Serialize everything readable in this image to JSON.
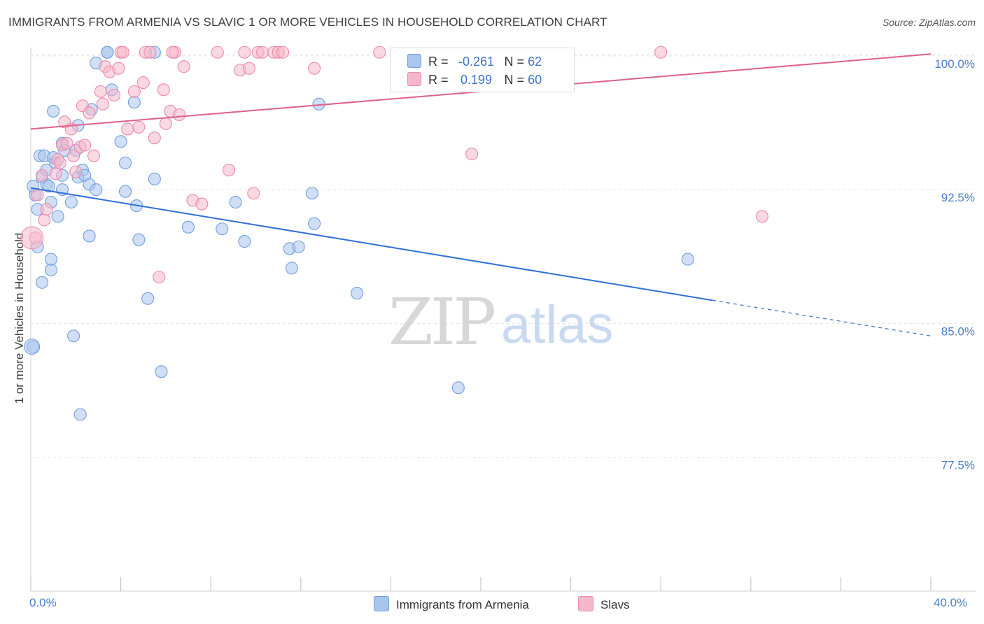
{
  "title": "IMMIGRANTS FROM ARMENIA VS SLAVIC 1 OR MORE VEHICLES IN HOUSEHOLD CORRELATION CHART",
  "source": "Source: ZipAtlas.com",
  "watermark": {
    "zip": "ZIP",
    "atlas": "atlas"
  },
  "legend": {
    "r_label": "R =",
    "n_label": "N =",
    "rows": [
      {
        "r": "-0.261",
        "n": "62",
        "color": "#a9c5ec"
      },
      {
        "r": "0.199",
        "n": "60",
        "color": "#f5b8cb"
      }
    ]
  },
  "bottom_legend": [
    {
      "label": "Immigrants from Armenia",
      "color": "#a9c5ec"
    },
    {
      "label": "Slavs",
      "color": "#f5b8cb"
    }
  ],
  "chart_data": {
    "type": "scatter",
    "ylabel": "1 or more Vehicles in Household",
    "xlim": [
      0,
      40
    ],
    "ylim": [
      70,
      100.7
    ],
    "x_tick_labels": [
      {
        "value": 0,
        "label": "0.0%"
      },
      {
        "value": 40,
        "label": "40.0%"
      }
    ],
    "y_tick_labels": [
      {
        "value": 100,
        "label": "100.0%"
      },
      {
        "value": 92.5,
        "label": "92.5%"
      },
      {
        "value": 85,
        "label": "85.0%"
      },
      {
        "value": 77.5,
        "label": "77.5%"
      }
    ],
    "x_minor_ticks": [
      0,
      4,
      8,
      12,
      16,
      20,
      24,
      28,
      32,
      36,
      40
    ],
    "grid": true,
    "series": [
      {
        "name": "Immigrants from Armenia",
        "color": "#6f9fe0",
        "fill": "#a9c5ec",
        "trend": {
          "x0": 0,
          "y0": 92.6,
          "x1": 30.3,
          "y1": 86.3,
          "dash_x1": 40,
          "dash_y1": 84.3
        },
        "points": [
          [
            0.1,
            83.7
          ],
          [
            0.2,
            92.2
          ],
          [
            0.3,
            89.3
          ],
          [
            0.3,
            91.4
          ],
          [
            0.4,
            94.4
          ],
          [
            0.5,
            93.2
          ],
          [
            0.5,
            87.3
          ],
          [
            0.6,
            94.4
          ],
          [
            0.7,
            92.8
          ],
          [
            0.7,
            93.6
          ],
          [
            0.8,
            92.7
          ],
          [
            0.9,
            88.0
          ],
          [
            0.9,
            88.6
          ],
          [
            0.9,
            91.8
          ],
          [
            1.0,
            96.9
          ],
          [
            1.0,
            94.3
          ],
          [
            1.1,
            94.0
          ],
          [
            1.2,
            91.0
          ],
          [
            1.4,
            95.1
          ],
          [
            1.4,
            93.3
          ],
          [
            1.4,
            92.5
          ],
          [
            1.5,
            94.7
          ],
          [
            1.8,
            91.8
          ],
          [
            1.9,
            84.3
          ],
          [
            2.0,
            94.7
          ],
          [
            2.1,
            93.2
          ],
          [
            2.1,
            96.1
          ],
          [
            2.2,
            79.9
          ],
          [
            2.3,
            93.6
          ],
          [
            2.4,
            93.3
          ],
          [
            2.6,
            89.9
          ],
          [
            2.6,
            92.8
          ],
          [
            2.7,
            97.0
          ],
          [
            2.9,
            92.5
          ],
          [
            2.9,
            99.6
          ],
          [
            3.4,
            100.2
          ],
          [
            3.4,
            100.2
          ],
          [
            3.6,
            98.1
          ],
          [
            4.0,
            95.2
          ],
          [
            4.2,
            92.4
          ],
          [
            4.2,
            94.0
          ],
          [
            4.6,
            97.4
          ],
          [
            4.7,
            91.6
          ],
          [
            4.8,
            89.7
          ],
          [
            5.2,
            86.4
          ],
          [
            5.5,
            93.1
          ],
          [
            5.5,
            100.2
          ],
          [
            5.8,
            82.3
          ],
          [
            7.0,
            90.4
          ],
          [
            8.5,
            90.3
          ],
          [
            9.1,
            91.8
          ],
          [
            9.5,
            89.6
          ],
          [
            11.5,
            89.2
          ],
          [
            11.6,
            88.1
          ],
          [
            11.9,
            89.3
          ],
          [
            12.5,
            92.3
          ],
          [
            12.6,
            90.6
          ],
          [
            12.8,
            97.3
          ],
          [
            14.5,
            86.7
          ],
          [
            19.0,
            81.4
          ],
          [
            29.2,
            88.6
          ],
          [
            0.1,
            92.7
          ]
        ]
      },
      {
        "name": "Slavs",
        "color": "#ec8aaa",
        "fill": "#f5b8cb",
        "trend": {
          "x0": 0,
          "y0": 95.9,
          "x1": 40,
          "y1": 100.1
        },
        "points": [
          [
            0.2,
            89.8
          ],
          [
            0.3,
            92.2
          ],
          [
            0.5,
            93.3
          ],
          [
            0.6,
            90.8
          ],
          [
            0.7,
            91.4
          ],
          [
            1.1,
            93.4
          ],
          [
            1.2,
            94.2
          ],
          [
            1.3,
            94.0
          ],
          [
            1.4,
            95.0
          ],
          [
            1.5,
            96.3
          ],
          [
            1.6,
            95.1
          ],
          [
            1.8,
            95.9
          ],
          [
            1.9,
            94.4
          ],
          [
            2.0,
            93.5
          ],
          [
            2.2,
            94.9
          ],
          [
            2.3,
            97.2
          ],
          [
            2.4,
            95.0
          ],
          [
            2.6,
            96.8
          ],
          [
            2.8,
            94.4
          ],
          [
            3.1,
            98.0
          ],
          [
            3.2,
            97.3
          ],
          [
            3.3,
            99.4
          ],
          [
            3.5,
            99.1
          ],
          [
            3.7,
            97.8
          ],
          [
            3.9,
            99.3
          ],
          [
            4.0,
            100.2
          ],
          [
            4.1,
            100.2
          ],
          [
            4.3,
            95.9
          ],
          [
            4.6,
            98.0
          ],
          [
            4.8,
            96.0
          ],
          [
            5.0,
            98.5
          ],
          [
            5.1,
            100.2
          ],
          [
            5.3,
            100.2
          ],
          [
            5.5,
            95.4
          ],
          [
            5.7,
            87.6
          ],
          [
            5.9,
            98.1
          ],
          [
            6.0,
            96.2
          ],
          [
            6.2,
            96.9
          ],
          [
            6.4,
            100.2
          ],
          [
            6.6,
            96.7
          ],
          [
            6.8,
            99.4
          ],
          [
            7.2,
            91.9
          ],
          [
            7.6,
            91.7
          ],
          [
            8.3,
            100.2
          ],
          [
            8.8,
            93.6
          ],
          [
            9.3,
            99.2
          ],
          [
            9.5,
            100.2
          ],
          [
            9.7,
            99.3
          ],
          [
            9.9,
            92.3
          ],
          [
            10.1,
            100.2
          ],
          [
            10.3,
            100.2
          ],
          [
            10.8,
            100.2
          ],
          [
            11.0,
            100.2
          ],
          [
            11.2,
            100.2
          ],
          [
            12.6,
            99.3
          ],
          [
            15.5,
            100.2
          ],
          [
            19.6,
            94.5
          ],
          [
            28.0,
            100.2
          ],
          [
            32.5,
            91.0
          ],
          [
            6.3,
            100.2
          ]
        ]
      }
    ]
  }
}
